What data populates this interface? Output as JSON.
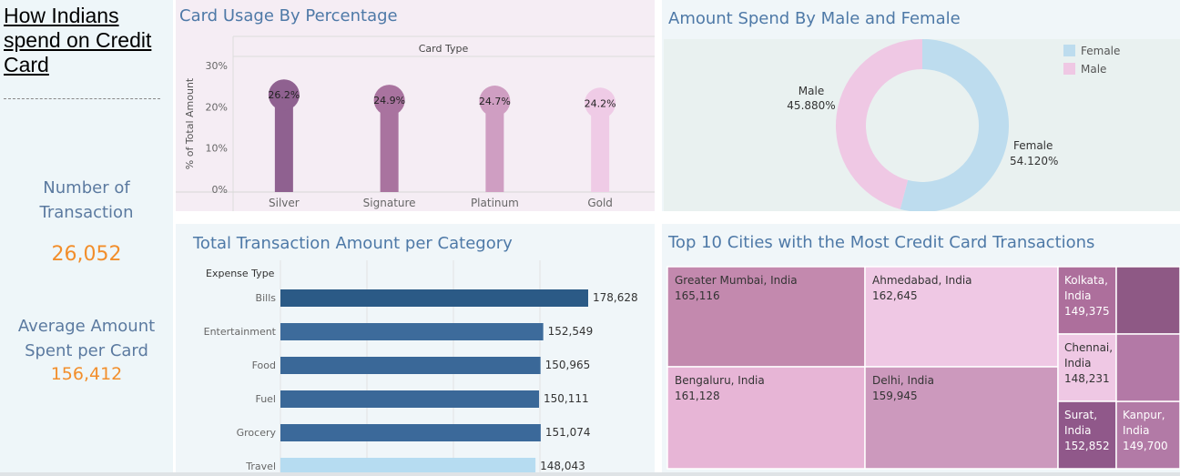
{
  "dashboard": {
    "title": "How Indians spend on Credit Card",
    "kpis": {
      "transactions_label": "Number of Transaction",
      "transactions_value": "26,052",
      "avg_label": "Average Amount Spent per Card",
      "avg_value": "156,412"
    }
  },
  "panels": {
    "card_title": "Card Usage By Percentage",
    "gender_title": "Amount Spend By Male and Female",
    "category_title": "Total Transaction Amount per Category",
    "city_title": "Top 10 Cities with the Most Credit Card Transactions"
  },
  "chart_data": [
    {
      "type": "bar",
      "title": "Card Usage By Percentage",
      "column_header": "Card Type",
      "ylabel": "% of Total Amount",
      "ylim": [
        0,
        30
      ],
      "y_ticks": [
        "0%",
        "10%",
        "20%",
        "30%"
      ],
      "categories": [
        "Silver",
        "Signature",
        "Platinum",
        "Gold"
      ],
      "values": [
        26.2,
        24.9,
        24.7,
        24.2
      ],
      "labels": [
        "26.2%",
        "24.9%",
        "24.7%",
        "24.2%"
      ],
      "colors": [
        "#8f6190",
        "#a9739f",
        "#cf9ec2",
        "#efcbe6"
      ]
    },
    {
      "type": "pie",
      "title": "Amount Spend By Male and Female",
      "legend_position": "top-right",
      "slices": [
        {
          "name": "Female",
          "value": 54.12,
          "label": "54.120%",
          "color": "#bddcee"
        },
        {
          "name": "Male",
          "value": 45.88,
          "label": "45.880%",
          "color": "#efc8e4"
        }
      ]
    },
    {
      "type": "bar",
      "orientation": "horizontal",
      "title": "Total Transaction Amount per Category",
      "header": "Expense Type",
      "categories": [
        "Bills",
        "Entertainment",
        "Food",
        "Fuel",
        "Grocery",
        "Travel"
      ],
      "values": [
        178628,
        152549,
        150965,
        150111,
        151074,
        148043
      ],
      "labels": [
        "178,628",
        "152,549",
        "150,965",
        "150,111",
        "151,074",
        "148,043"
      ],
      "colors": [
        "#2b5a86",
        "#3d6b9b",
        "#3a6898",
        "#3a6898",
        "#3b699a",
        "#b6dcf1"
      ]
    },
    {
      "type": "table",
      "subtype": "treemap",
      "title": "Top 10 Cities with the Most Credit Card Transactions",
      "cells": [
        {
          "city": "Greater Mumbai, India",
          "value": "165,116"
        },
        {
          "city": "Ahmedabad, India",
          "value": "162,645"
        },
        {
          "city": "Bengaluru, India",
          "value": "161,128"
        },
        {
          "city": "Delhi, India",
          "value": "159,945"
        },
        {
          "city": "Kolkata, India",
          "value": "149,375"
        },
        {
          "city": "Chennai, India",
          "value": "148,231"
        },
        {
          "city": "Surat, India",
          "value": "152,852"
        },
        {
          "city": "Kanpur, India",
          "value": "149,700"
        },
        {
          "city": "",
          "value": ""
        },
        {
          "city": "",
          "value": ""
        }
      ]
    }
  ],
  "colors": {
    "title_blue": "#4e79a7",
    "kpi_orange": "#f28e2b"
  }
}
